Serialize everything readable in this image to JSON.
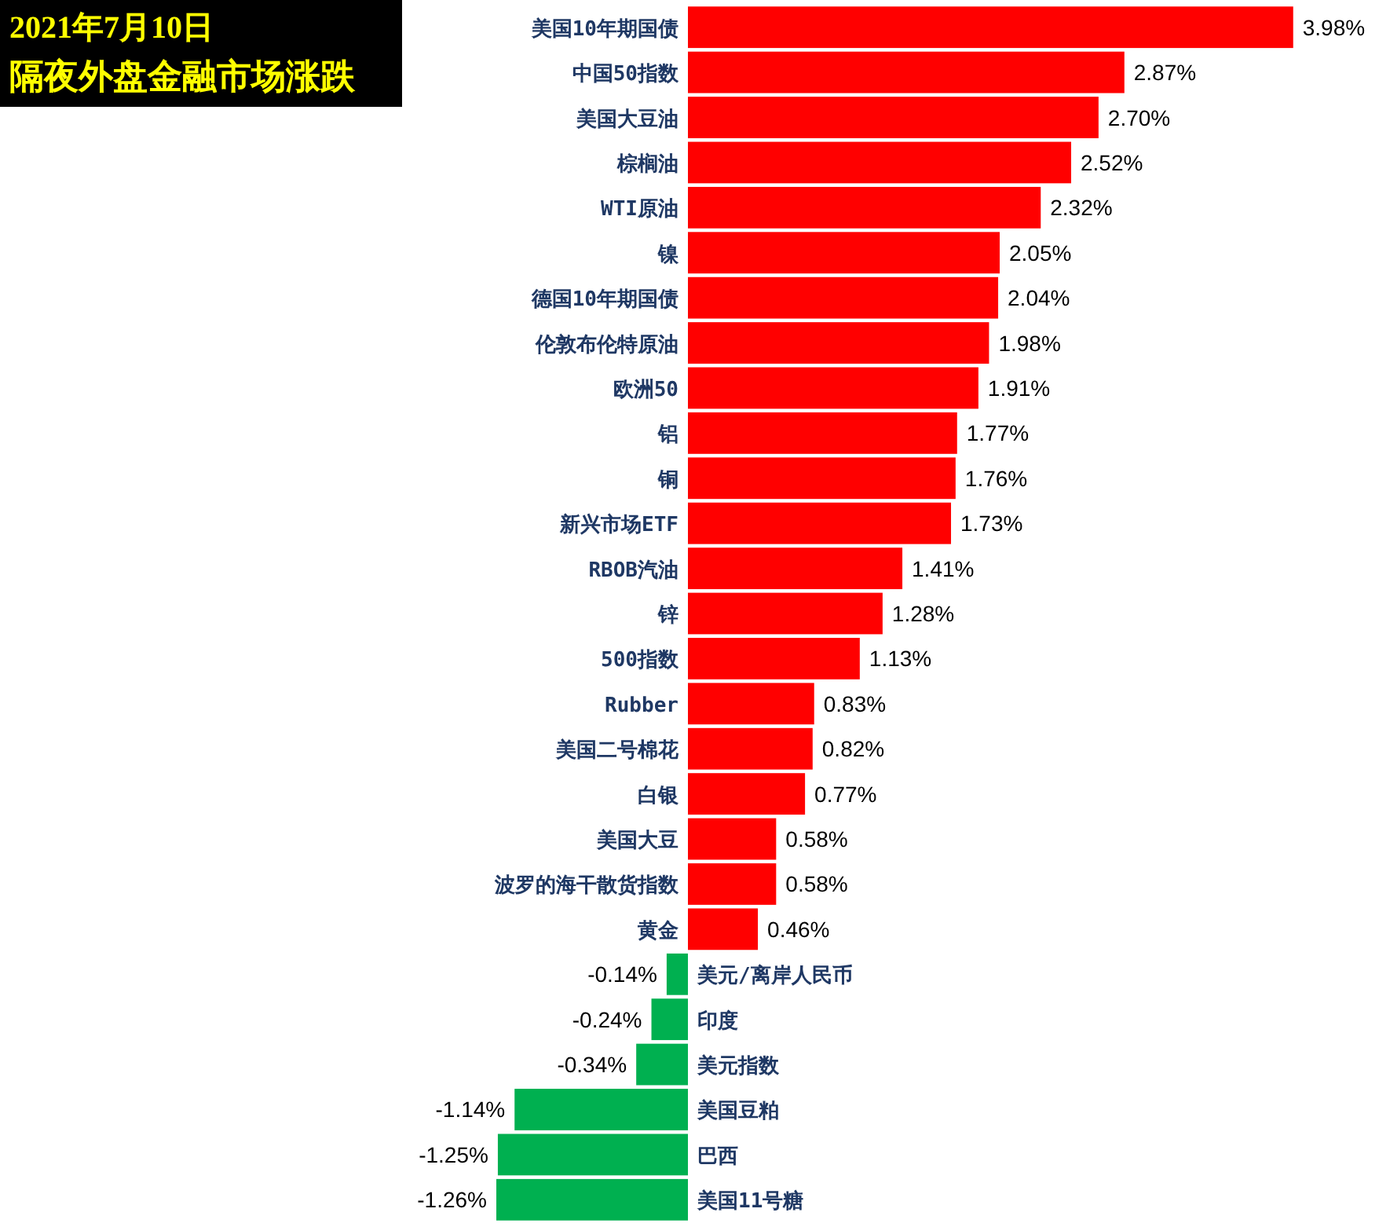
{
  "chart_data": {
    "type": "bar",
    "orientation": "horizontal",
    "title": "2021年7月10日",
    "subtitle": "隔夜外盘金融市场涨跌",
    "categories": [
      "美国10年期国债",
      "中国50指数",
      "美国大豆油",
      "棕榈油",
      "WTI原油",
      "镍",
      "德国10年期国债",
      "伦敦布伦特原油",
      "欧洲50",
      "铝",
      "铜",
      "新兴市场ETF",
      "RBOB汽油",
      "锌",
      "500指数",
      "Rubber",
      "美国二号棉花",
      "白银",
      "美国大豆",
      "波罗的海干散货指数",
      "黄金",
      "美元/离岸人民币",
      "印度",
      "美元指数",
      "美国豆粕",
      "巴西",
      "美国11号糖"
    ],
    "values": [
      3.98,
      2.87,
      2.7,
      2.52,
      2.32,
      2.05,
      2.04,
      1.98,
      1.91,
      1.77,
      1.76,
      1.73,
      1.41,
      1.28,
      1.13,
      0.83,
      0.82,
      0.77,
      0.58,
      0.58,
      0.46,
      -0.14,
      -0.24,
      -0.34,
      -1.14,
      -1.25,
      -1.26
    ],
    "value_labels": [
      "3.98%",
      "2.87%",
      "2.70%",
      "2.52%",
      "2.32%",
      "2.05%",
      "2.04%",
      "1.98%",
      "1.91%",
      "1.77%",
      "1.76%",
      "1.73%",
      "1.41%",
      "1.28%",
      "1.13%",
      "0.83%",
      "0.82%",
      "0.77%",
      "0.58%",
      "0.58%",
      "0.46%",
      "-0.14%",
      "-0.24%",
      "-0.34%",
      "-1.14%",
      "-1.25%",
      "-1.26%"
    ],
    "colors": [
      "#ff0000",
      "#ff0000",
      "#ff0000",
      "#ff0000",
      "#ff0000",
      "#ff0000",
      "#ff0000",
      "#ff0000",
      "#ff0000",
      "#ff0000",
      "#ff0000",
      "#ff0000",
      "#ff0000",
      "#ff0000",
      "#ff0000",
      "#ff0000",
      "#ff0000",
      "#ff0000",
      "#ff0000",
      "#ff0000",
      "#ff0000",
      "#00b050",
      "#00b050",
      "#00b050",
      "#00b050",
      "#00b050",
      "#00b050"
    ]
  }
}
